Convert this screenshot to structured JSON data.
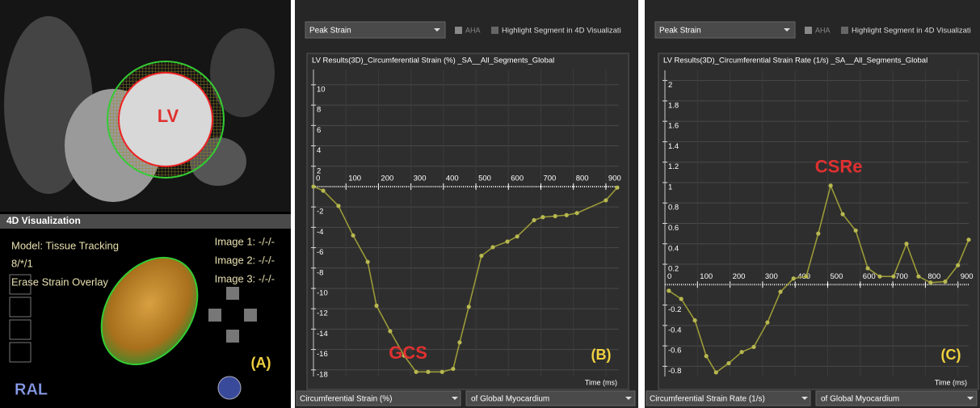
{
  "panel_a": {
    "lv_label": "LV",
    "section_title": "4D Visualization",
    "model": "Model: Tissue Tracking",
    "frame": "8/*/1",
    "erase": "Erase Strain Overlay",
    "images": [
      "Image 1: -/-/-",
      "Image 2: -/-/-",
      "Image 3: -/-/-"
    ],
    "panel_label": "(A)",
    "orientation": "RAL"
  },
  "controls": [
    {
      "measure_top": "Peak Strain",
      "aha": "AHA",
      "highlight": "Highlight Segment in 4D Visualizati",
      "measure": "Circumferential Strain (%)",
      "region": "of Global Myocardium"
    },
    {
      "measure_top": "Peak Strain",
      "aha": "AHA",
      "highlight": "Highlight Segment in 4D Visualizati",
      "measure": "Circumferential Strain Rate (1/s)",
      "region": "of Global Myocardium"
    }
  ],
  "chart_data": [
    {
      "type": "line",
      "title": "LV Results(3D)_Circumferential Strain (%) _SA__All_Segments_Global",
      "xlabel": "Time (ms)",
      "annotation": "GCS",
      "panel_label": "(B)",
      "color": "#9a9a38",
      "grid": true,
      "x": [
        0,
        30,
        77,
        122,
        167,
        194,
        236,
        279,
        316,
        353,
        396,
        430,
        450,
        478,
        517,
        552,
        597,
        627,
        679,
        706,
        744,
        779,
        811,
        900,
        935
      ],
      "values": [
        0,
        -0.4,
        -1.9,
        -4.8,
        -7.4,
        -11.7,
        -14.2,
        -16.6,
        -18.2,
        -18.2,
        -18.2,
        -17.9,
        -15.3,
        -11.8,
        -6.8,
        -5.95,
        -5.4,
        -4.9,
        -3.3,
        -3.0,
        -2.9,
        -2.8,
        -2.6,
        -1.35,
        -0.1
      ],
      "xlim": [
        0,
        940
      ],
      "xticks": [
        0,
        100,
        200,
        300,
        400,
        500,
        600,
        700,
        800,
        900
      ],
      "ylim": [
        -18.65,
        11.5
      ],
      "yticks": [
        10,
        8,
        6,
        4,
        2,
        -2,
        -4,
        -6,
        -8,
        -10,
        -12,
        -14,
        -16,
        -18
      ]
    },
    {
      "type": "line",
      "title": "LV Results(3D)_Circumferential Strain Rate (1/s) _SA__All_Segments_Global",
      "xlabel": "Time (ms)",
      "annotation": "CSRe",
      "panel_label": "(C)",
      "color": "#9a9a38",
      "grid": true,
      "x": [
        12,
        50,
        92,
        127,
        157,
        196,
        236,
        273,
        315,
        355,
        395,
        434,
        471,
        509,
        546,
        586,
        623,
        660,
        702,
        742,
        779,
        816,
        861,
        900,
        933
      ],
      "values": [
        -0.06,
        -0.14,
        -0.35,
        -0.7,
        -0.86,
        -0.77,
        -0.66,
        -0.61,
        -0.37,
        -0.07,
        0.06,
        0.08,
        0.5,
        0.97,
        0.69,
        0.53,
        0.16,
        0.08,
        0.08,
        0.4,
        0.08,
        0.02,
        0.03,
        0.19,
        0.44
      ],
      "xlim": [
        0,
        933
      ],
      "xticks": [
        0,
        100,
        200,
        300,
        400,
        500,
        600,
        700,
        800,
        900
      ],
      "ylim": [
        -0.9,
        2.1
      ],
      "yticks": [
        2,
        1.8,
        1.6,
        1.4,
        1.2,
        1,
        0.8,
        0.6,
        0.4,
        0.2,
        -0.2,
        -0.4,
        -0.6,
        -0.8
      ]
    }
  ]
}
